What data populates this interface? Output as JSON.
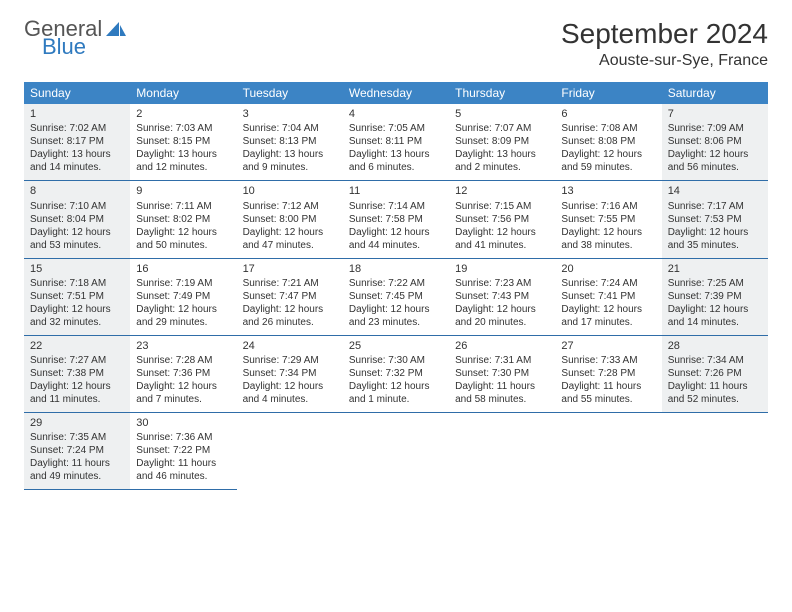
{
  "logo": {
    "word1": "General",
    "word2": "Blue"
  },
  "title": "September 2024",
  "location": "Aouste-sur-Sye, France",
  "colors": {
    "header_bg": "#3c84c5",
    "header_text": "#ffffff",
    "row_border": "#2f6da8",
    "shaded_bg": "#eef0f1",
    "text": "#333333",
    "logo_blue": "#2f7abf"
  },
  "weekdays": [
    "Sunday",
    "Monday",
    "Tuesday",
    "Wednesday",
    "Thursday",
    "Friday",
    "Saturday"
  ],
  "weeks": [
    [
      {
        "n": "1",
        "shaded": true,
        "sr": "Sunrise: 7:02 AM",
        "ss": "Sunset: 8:17 PM",
        "d1": "Daylight: 13 hours",
        "d2": "and 14 minutes."
      },
      {
        "n": "2",
        "shaded": false,
        "sr": "Sunrise: 7:03 AM",
        "ss": "Sunset: 8:15 PM",
        "d1": "Daylight: 13 hours",
        "d2": "and 12 minutes."
      },
      {
        "n": "3",
        "shaded": false,
        "sr": "Sunrise: 7:04 AM",
        "ss": "Sunset: 8:13 PM",
        "d1": "Daylight: 13 hours",
        "d2": "and 9 minutes."
      },
      {
        "n": "4",
        "shaded": false,
        "sr": "Sunrise: 7:05 AM",
        "ss": "Sunset: 8:11 PM",
        "d1": "Daylight: 13 hours",
        "d2": "and 6 minutes."
      },
      {
        "n": "5",
        "shaded": false,
        "sr": "Sunrise: 7:07 AM",
        "ss": "Sunset: 8:09 PM",
        "d1": "Daylight: 13 hours",
        "d2": "and 2 minutes."
      },
      {
        "n": "6",
        "shaded": false,
        "sr": "Sunrise: 7:08 AM",
        "ss": "Sunset: 8:08 PM",
        "d1": "Daylight: 12 hours",
        "d2": "and 59 minutes."
      },
      {
        "n": "7",
        "shaded": true,
        "sr": "Sunrise: 7:09 AM",
        "ss": "Sunset: 8:06 PM",
        "d1": "Daylight: 12 hours",
        "d2": "and 56 minutes."
      }
    ],
    [
      {
        "n": "8",
        "shaded": true,
        "sr": "Sunrise: 7:10 AM",
        "ss": "Sunset: 8:04 PM",
        "d1": "Daylight: 12 hours",
        "d2": "and 53 minutes."
      },
      {
        "n": "9",
        "shaded": false,
        "sr": "Sunrise: 7:11 AM",
        "ss": "Sunset: 8:02 PM",
        "d1": "Daylight: 12 hours",
        "d2": "and 50 minutes."
      },
      {
        "n": "10",
        "shaded": false,
        "sr": "Sunrise: 7:12 AM",
        "ss": "Sunset: 8:00 PM",
        "d1": "Daylight: 12 hours",
        "d2": "and 47 minutes."
      },
      {
        "n": "11",
        "shaded": false,
        "sr": "Sunrise: 7:14 AM",
        "ss": "Sunset: 7:58 PM",
        "d1": "Daylight: 12 hours",
        "d2": "and 44 minutes."
      },
      {
        "n": "12",
        "shaded": false,
        "sr": "Sunrise: 7:15 AM",
        "ss": "Sunset: 7:56 PM",
        "d1": "Daylight: 12 hours",
        "d2": "and 41 minutes."
      },
      {
        "n": "13",
        "shaded": false,
        "sr": "Sunrise: 7:16 AM",
        "ss": "Sunset: 7:55 PM",
        "d1": "Daylight: 12 hours",
        "d2": "and 38 minutes."
      },
      {
        "n": "14",
        "shaded": true,
        "sr": "Sunrise: 7:17 AM",
        "ss": "Sunset: 7:53 PM",
        "d1": "Daylight: 12 hours",
        "d2": "and 35 minutes."
      }
    ],
    [
      {
        "n": "15",
        "shaded": true,
        "sr": "Sunrise: 7:18 AM",
        "ss": "Sunset: 7:51 PM",
        "d1": "Daylight: 12 hours",
        "d2": "and 32 minutes."
      },
      {
        "n": "16",
        "shaded": false,
        "sr": "Sunrise: 7:19 AM",
        "ss": "Sunset: 7:49 PM",
        "d1": "Daylight: 12 hours",
        "d2": "and 29 minutes."
      },
      {
        "n": "17",
        "shaded": false,
        "sr": "Sunrise: 7:21 AM",
        "ss": "Sunset: 7:47 PM",
        "d1": "Daylight: 12 hours",
        "d2": "and 26 minutes."
      },
      {
        "n": "18",
        "shaded": false,
        "sr": "Sunrise: 7:22 AM",
        "ss": "Sunset: 7:45 PM",
        "d1": "Daylight: 12 hours",
        "d2": "and 23 minutes."
      },
      {
        "n": "19",
        "shaded": false,
        "sr": "Sunrise: 7:23 AM",
        "ss": "Sunset: 7:43 PM",
        "d1": "Daylight: 12 hours",
        "d2": "and 20 minutes."
      },
      {
        "n": "20",
        "shaded": false,
        "sr": "Sunrise: 7:24 AM",
        "ss": "Sunset: 7:41 PM",
        "d1": "Daylight: 12 hours",
        "d2": "and 17 minutes."
      },
      {
        "n": "21",
        "shaded": true,
        "sr": "Sunrise: 7:25 AM",
        "ss": "Sunset: 7:39 PM",
        "d1": "Daylight: 12 hours",
        "d2": "and 14 minutes."
      }
    ],
    [
      {
        "n": "22",
        "shaded": true,
        "sr": "Sunrise: 7:27 AM",
        "ss": "Sunset: 7:38 PM",
        "d1": "Daylight: 12 hours",
        "d2": "and 11 minutes."
      },
      {
        "n": "23",
        "shaded": false,
        "sr": "Sunrise: 7:28 AM",
        "ss": "Sunset: 7:36 PM",
        "d1": "Daylight: 12 hours",
        "d2": "and 7 minutes."
      },
      {
        "n": "24",
        "shaded": false,
        "sr": "Sunrise: 7:29 AM",
        "ss": "Sunset: 7:34 PM",
        "d1": "Daylight: 12 hours",
        "d2": "and 4 minutes."
      },
      {
        "n": "25",
        "shaded": false,
        "sr": "Sunrise: 7:30 AM",
        "ss": "Sunset: 7:32 PM",
        "d1": "Daylight: 12 hours",
        "d2": "and 1 minute."
      },
      {
        "n": "26",
        "shaded": false,
        "sr": "Sunrise: 7:31 AM",
        "ss": "Sunset: 7:30 PM",
        "d1": "Daylight: 11 hours",
        "d2": "and 58 minutes."
      },
      {
        "n": "27",
        "shaded": false,
        "sr": "Sunrise: 7:33 AM",
        "ss": "Sunset: 7:28 PM",
        "d1": "Daylight: 11 hours",
        "d2": "and 55 minutes."
      },
      {
        "n": "28",
        "shaded": true,
        "sr": "Sunrise: 7:34 AM",
        "ss": "Sunset: 7:26 PM",
        "d1": "Daylight: 11 hours",
        "d2": "and 52 minutes."
      }
    ],
    [
      {
        "n": "29",
        "shaded": true,
        "sr": "Sunrise: 7:35 AM",
        "ss": "Sunset: 7:24 PM",
        "d1": "Daylight: 11 hours",
        "d2": "and 49 minutes."
      },
      {
        "n": "30",
        "shaded": false,
        "sr": "Sunrise: 7:36 AM",
        "ss": "Sunset: 7:22 PM",
        "d1": "Daylight: 11 hours",
        "d2": "and 46 minutes."
      },
      null,
      null,
      null,
      null,
      null
    ]
  ]
}
